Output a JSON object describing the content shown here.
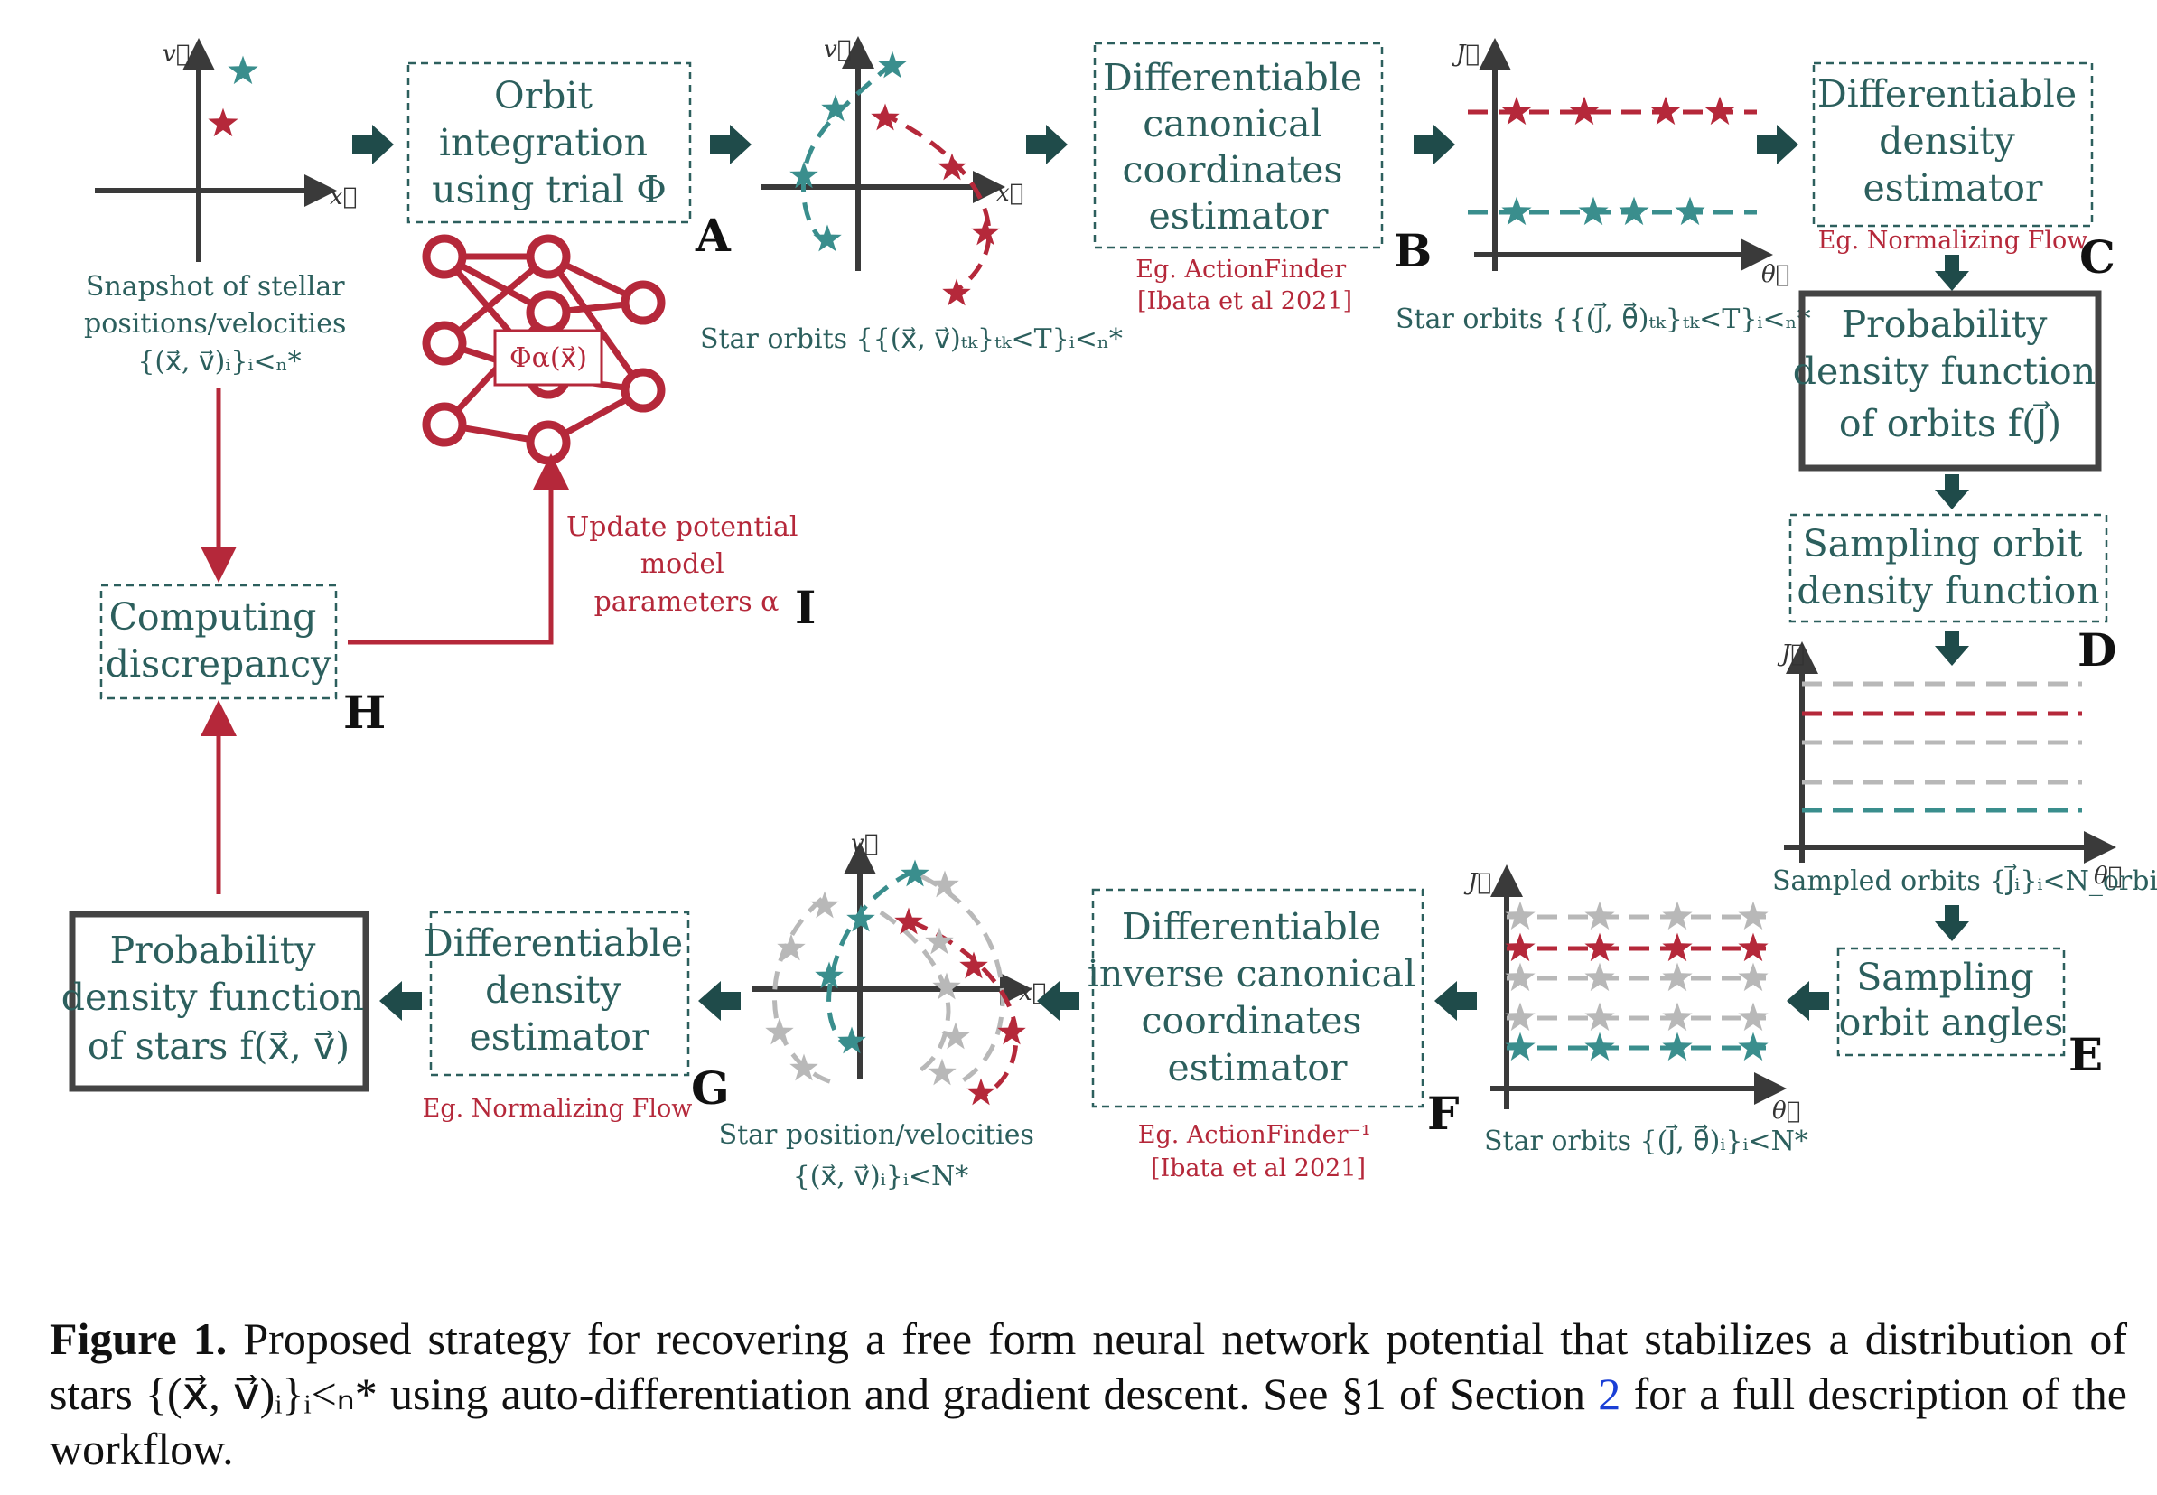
{
  "colors": {
    "teal": "#2c5f5d",
    "red": "#b5283a",
    "star_teal": "#3a8e8d",
    "grey": "#b8b8b8",
    "dark": "#3a3a3a"
  },
  "boxes": {
    "orbit_integration": [
      "Orbit",
      "integration",
      "using trial Φ"
    ],
    "canonical_estimator": [
      "Differentiable",
      "canonical",
      "coordinates",
      "estimator"
    ],
    "density_estimator_top": [
      "Differentiable",
      "density",
      "estimator"
    ],
    "pdf_orbits": [
      "Probability",
      "density function",
      "of orbits f(J⃗)"
    ],
    "sampling_density": [
      "Sampling orbit",
      "density function"
    ],
    "sampling_angles": [
      "Sampling",
      "orbit angles"
    ],
    "inverse_estimator": [
      "Differentiable",
      "inverse canonical",
      "coordinates",
      "estimator"
    ],
    "density_estimator_bottom": [
      "Differentiable",
      "density",
      "estimator"
    ],
    "pdf_stars": [
      "Probability",
      "density function",
      "of stars f(x⃗, v⃗)"
    ],
    "discrepancy": [
      "Computing",
      "discrepancy"
    ]
  },
  "labels": {
    "snapshot": [
      "Snapshot of stellar",
      "positions/velocities",
      "{(x⃗, v⃗)ᵢ}ᵢ<ₙ*"
    ],
    "star_orbits_A": "Star orbits {{(x⃗, v⃗)ₜₖ}ₜₖ<T}ᵢ<ₙ*",
    "eg_actionfinder": [
      "Eg. ActionFinder",
      "[Ibata et al 2021]"
    ],
    "star_orbits_B": "Star orbits {{(J⃗, θ⃗)ₜₖ}ₜₖ<T}ᵢ<ₙ*",
    "eg_nf_top": "Eg. Normalizing Flow",
    "sampled_orbits": "Sampled orbits {J⃗ᵢ}ᵢ<N_orbits",
    "star_orbits_F": "Star orbits {(J⃗, θ⃗)ᵢ}ᵢ<N*",
    "eg_actionfinder_inv": [
      "Eg. ActionFinder⁻¹",
      "[Ibata et al 2021]"
    ],
    "star_posvel": [
      "Star position/velocities",
      "{(x⃗, v⃗)ᵢ}ᵢ<N*"
    ],
    "eg_nf_bottom": "Eg. Normalizing Flow",
    "update_potential": [
      "Update potential",
      "model",
      "parameters α"
    ],
    "phi_alpha": "Φα(x⃗)"
  },
  "axes": {
    "x": "x⃗",
    "v": "v⃗",
    "J": "J⃗",
    "theta": "θ⃗"
  },
  "step_letters": [
    "A",
    "B",
    "C",
    "D",
    "E",
    "F",
    "G",
    "H",
    "I"
  ],
  "caption": {
    "label": "Figure 1.",
    "text_1": " Proposed strategy for recovering a free form neural network potential that stabilizes a distribution of stars {(x⃗, v⃗)ᵢ}ᵢ<ₙ* using auto-differentiation and gradient descent. See §1 of Section ",
    "link": "2",
    "text_2": " for a full description of the workflow."
  }
}
